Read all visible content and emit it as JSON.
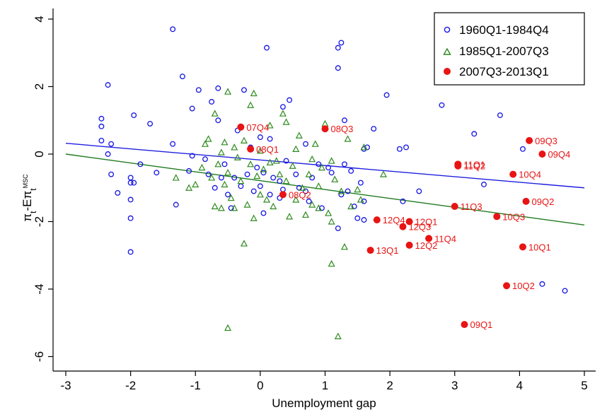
{
  "chart_data": {
    "type": "scatter",
    "xlabel": "Unemployment gap",
    "ylabel_main": "π",
    "ylabel_sub1": "t",
    "ylabel_mid": "-Eπ",
    "ylabel_sub2": "t",
    "ylabel_sup": "MSC",
    "xlim": [
      -3.3,
      5.1
    ],
    "ylim": [
      -6.3,
      4.3
    ],
    "xticks": [
      -3,
      -2,
      -1,
      0,
      1,
      2,
      3,
      4,
      5
    ],
    "yticks": [
      4,
      2,
      0,
      -2,
      -4,
      -6
    ],
    "grid": false,
    "legend_position": "top-right",
    "series": [
      {
        "name": "1960Q1-1984Q4",
        "marker": "circle-hollow",
        "color": "#1414e6",
        "points": [
          [
            -2.35,
            2.05
          ],
          [
            -2.45,
            1.05
          ],
          [
            -2.45,
            0.82
          ],
          [
            -2.45,
            0.4
          ],
          [
            -2.35,
            0.0
          ],
          [
            -2.3,
            -0.6
          ],
          [
            -2.2,
            -1.15
          ],
          [
            -2.3,
            0.3
          ],
          [
            -1.95,
            1.15
          ],
          [
            -2.0,
            -0.7
          ],
          [
            -2.0,
            -0.85
          ],
          [
            -2.0,
            -1.35
          ],
          [
            -1.95,
            -0.85
          ],
          [
            -2.0,
            -1.9
          ],
          [
            -2.0,
            -2.9
          ],
          [
            -1.85,
            -0.3
          ],
          [
            -1.7,
            0.9
          ],
          [
            -1.6,
            -0.55
          ],
          [
            -1.35,
            3.7
          ],
          [
            -1.35,
            0.3
          ],
          [
            -1.3,
            -1.5
          ],
          [
            -1.2,
            2.3
          ],
          [
            -1.1,
            -0.5
          ],
          [
            -1.05,
            1.35
          ],
          [
            -1.05,
            -0.05
          ],
          [
            -0.95,
            1.9
          ],
          [
            -0.85,
            -0.15
          ],
          [
            -0.8,
            -0.6
          ],
          [
            -0.75,
            1.55
          ],
          [
            -0.7,
            -1.0
          ],
          [
            -0.65,
            1.95
          ],
          [
            -0.65,
            1.0
          ],
          [
            -0.6,
            -0.7
          ],
          [
            -0.55,
            -0.3
          ],
          [
            -0.5,
            -1.2
          ],
          [
            -0.45,
            -1.6
          ],
          [
            -0.4,
            -0.7
          ],
          [
            -0.35,
            0.7
          ],
          [
            -0.3,
            -0.95
          ],
          [
            -0.25,
            1.9
          ],
          [
            -0.2,
            -0.6
          ],
          [
            -0.15,
            0.2
          ],
          [
            -0.1,
            -1.1
          ],
          [
            -0.05,
            -0.4
          ],
          [
            0.0,
            0.5
          ],
          [
            0.0,
            -0.95
          ],
          [
            0.05,
            -1.75
          ],
          [
            0.05,
            -0.55
          ],
          [
            0.1,
            3.15
          ],
          [
            0.15,
            -1.2
          ],
          [
            0.15,
            0.45
          ],
          [
            0.2,
            -0.7
          ],
          [
            0.3,
            -1.3
          ],
          [
            0.3,
            -0.8
          ],
          [
            0.35,
            1.4
          ],
          [
            0.35,
            -1.05
          ],
          [
            0.45,
            1.6
          ],
          [
            0.4,
            -0.2
          ],
          [
            0.55,
            -0.6
          ],
          [
            0.6,
            -1.0
          ],
          [
            0.7,
            0.3
          ],
          [
            0.7,
            -1.1
          ],
          [
            0.75,
            -1.4
          ],
          [
            0.8,
            -0.7
          ],
          [
            0.9,
            -0.3
          ],
          [
            0.95,
            -1.6
          ],
          [
            1.05,
            -0.4
          ],
          [
            1.1,
            -0.55
          ],
          [
            1.2,
            2.55
          ],
          [
            1.2,
            3.15
          ],
          [
            1.25,
            3.3
          ],
          [
            1.2,
            -2.2
          ],
          [
            1.25,
            -1.2
          ],
          [
            1.3,
            1.0
          ],
          [
            1.3,
            -0.3
          ],
          [
            1.35,
            -1.1
          ],
          [
            1.4,
            -0.5
          ],
          [
            1.45,
            -1.55
          ],
          [
            1.5,
            -1.9
          ],
          [
            1.55,
            -0.85
          ],
          [
            1.6,
            -1.4
          ],
          [
            1.6,
            -1.95
          ],
          [
            1.6,
            0.15
          ],
          [
            1.65,
            0.2
          ],
          [
            1.75,
            0.75
          ],
          [
            1.95,
            1.75
          ],
          [
            2.15,
            0.15
          ],
          [
            2.25,
            0.2
          ],
          [
            2.2,
            -1.4
          ],
          [
            2.45,
            -1.1
          ],
          [
            2.8,
            1.45
          ],
          [
            3.05,
            -0.3
          ],
          [
            3.3,
            0.6
          ],
          [
            3.45,
            -0.9
          ],
          [
            3.7,
            1.15
          ],
          [
            4.05,
            0.15
          ],
          [
            4.35,
            -3.85
          ],
          [
            4.7,
            -4.05
          ]
        ]
      },
      {
        "name": "1985Q1-2007Q3",
        "marker": "triangle-hollow",
        "color": "#2e8a1e",
        "points": [
          [
            -1.0,
            -0.9
          ],
          [
            -0.9,
            -0.4
          ],
          [
            -0.85,
            0.3
          ],
          [
            -0.8,
            0.45
          ],
          [
            -0.75,
            -0.7
          ],
          [
            -0.7,
            1.2
          ],
          [
            -0.7,
            -1.55
          ],
          [
            -0.65,
            -0.3
          ],
          [
            -0.6,
            -1.6
          ],
          [
            -0.55,
            0.35
          ],
          [
            -0.55,
            -0.9
          ],
          [
            -0.5,
            1.85
          ],
          [
            -0.5,
            -0.55
          ],
          [
            -0.45,
            -1.3
          ],
          [
            -0.4,
            -1.6
          ],
          [
            -0.4,
            0.2
          ],
          [
            -0.35,
            -0.1
          ],
          [
            -0.3,
            -0.8
          ],
          [
            -0.25,
            0.4
          ],
          [
            -0.2,
            -1.5
          ],
          [
            -0.15,
            1.45
          ],
          [
            -0.15,
            -0.3
          ],
          [
            -0.1,
            1.8
          ],
          [
            -0.1,
            -1.9
          ],
          [
            -0.05,
            -0.65
          ],
          [
            0.0,
            -1.2
          ],
          [
            0.05,
            -0.45
          ],
          [
            0.1,
            -1.35
          ],
          [
            0.15,
            0.85
          ],
          [
            0.2,
            -1.55
          ],
          [
            0.25,
            -0.2
          ],
          [
            0.3,
            -0.6
          ],
          [
            0.35,
            1.2
          ],
          [
            0.4,
            0.95
          ],
          [
            0.4,
            -0.8
          ],
          [
            0.45,
            -1.85
          ],
          [
            0.5,
            -0.35
          ],
          [
            0.55,
            -1.35
          ],
          [
            0.6,
            0.55
          ],
          [
            0.65,
            -1.0
          ],
          [
            0.7,
            -1.8
          ],
          [
            0.75,
            -0.6
          ],
          [
            0.8,
            -1.5
          ],
          [
            0.85,
            0.3
          ],
          [
            0.9,
            -0.95
          ],
          [
            0.9,
            -1.6
          ],
          [
            0.95,
            -0.4
          ],
          [
            1.0,
            0.9
          ],
          [
            1.05,
            -1.75
          ],
          [
            1.1,
            -0.2
          ],
          [
            1.1,
            -2.0
          ],
          [
            1.15,
            -0.75
          ],
          [
            1.2,
            -5.4
          ],
          [
            1.25,
            -1.1
          ],
          [
            1.3,
            -2.75
          ],
          [
            1.1,
            -3.25
          ],
          [
            1.35,
            0.45
          ],
          [
            1.4,
            -1.55
          ],
          [
            1.5,
            -1.05
          ],
          [
            1.55,
            -1.35
          ],
          [
            1.6,
            0.2
          ],
          [
            1.9,
            -0.6
          ],
          [
            -0.5,
            -5.15
          ],
          [
            -0.25,
            -2.65
          ],
          [
            -1.1,
            -1.0
          ],
          [
            -1.3,
            -0.7
          ],
          [
            0.15,
            -0.25
          ],
          [
            -0.6,
            0.05
          ],
          [
            0.0,
            0.1
          ],
          [
            0.55,
            0.15
          ],
          [
            0.8,
            -0.15
          ]
        ]
      },
      {
        "name": "2007Q3-2013Q1",
        "marker": "circle-filled",
        "color": "#e81414",
        "points": [
          [
            -0.3,
            0.8,
            "07Q4"
          ],
          [
            -0.15,
            0.15,
            "08Q1"
          ],
          [
            0.35,
            -1.2,
            "08Q2"
          ],
          [
            1.0,
            0.75,
            "08Q3"
          ],
          [
            4.15,
            0.4,
            "09Q3"
          ],
          [
            4.35,
            0.0,
            "09Q4"
          ],
          [
            3.05,
            -0.3,
            "11Q1"
          ],
          [
            3.05,
            -0.35,
            "11Q2"
          ],
          [
            3.9,
            -0.6,
            "10Q4"
          ],
          [
            4.1,
            -1.4,
            "09Q2"
          ],
          [
            3.0,
            -1.55,
            "11Q3"
          ],
          [
            3.65,
            -1.85,
            "10Q3"
          ],
          [
            1.8,
            -1.95,
            "12Q4"
          ],
          [
            2.3,
            -2.0,
            "12Q1"
          ],
          [
            2.2,
            -2.15,
            "12Q3"
          ],
          [
            2.6,
            -2.5,
            "11Q4"
          ],
          [
            2.3,
            -2.7,
            "12Q2"
          ],
          [
            1.7,
            -2.85,
            "13Q1"
          ],
          [
            4.05,
            -2.75,
            "10Q1"
          ],
          [
            3.8,
            -3.9,
            "10Q2"
          ],
          [
            3.15,
            -5.05,
            "09Q1"
          ]
        ]
      }
    ],
    "fit_lines": [
      {
        "color": "#2020e0",
        "x": [
          -3,
          5
        ],
        "y": [
          0.32,
          -1.0
        ]
      },
      {
        "color": "#1e7a1e",
        "x": [
          -3,
          5
        ],
        "y": [
          0.0,
          -2.1
        ]
      }
    ]
  }
}
